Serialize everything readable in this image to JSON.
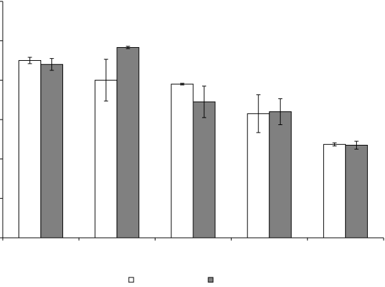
{
  "chart_data": {
    "type": "bar",
    "title": "",
    "xlabel": "",
    "ylabel": "",
    "ylim": [
      0,
      6
    ],
    "yticks": [
      0,
      1,
      2,
      3,
      4,
      5,
      6
    ],
    "categories": [
      "",
      "",
      "",
      "",
      ""
    ],
    "grid": false,
    "legend": {
      "placement": "bottom"
    },
    "series": [
      {
        "name": "",
        "color": "#ffffff",
        "values": [
          4.5,
          4.0,
          3.9,
          3.15,
          2.37
        ],
        "errors": [
          0.08,
          0.53,
          0.02,
          0.48,
          0.04
        ]
      },
      {
        "name": "",
        "color": "#808080",
        "values": [
          4.4,
          4.83,
          3.45,
          3.2,
          2.35
        ],
        "errors": [
          0.15,
          0.03,
          0.4,
          0.33,
          0.1
        ]
      }
    ]
  }
}
